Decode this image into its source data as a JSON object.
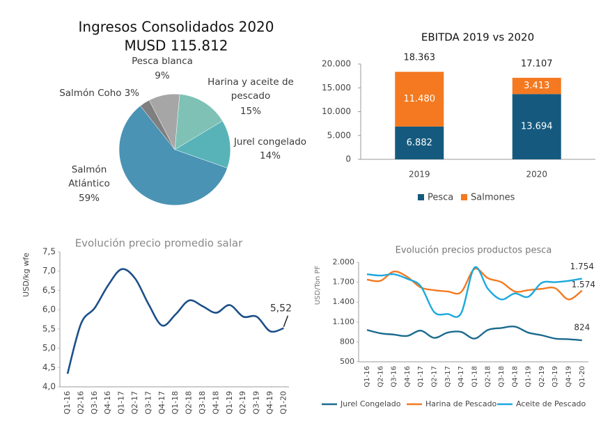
{
  "chart_data": [
    {
      "type": "pie",
      "title": "Ingresos Consolidados 2020",
      "subtitle": "MUSD 115.812",
      "categories": [
        "Harina y aceite de pescado",
        "Jurel congelado",
        "Salmón Atlántico",
        "Salmón Coho",
        "Pesca blanca"
      ],
      "values": [
        15,
        14,
        59,
        3,
        9
      ],
      "value_labels": [
        "15%",
        "14%",
        "59%",
        "3%",
        "9%"
      ],
      "colors": [
        "#7fc1b5",
        "#58b3b9",
        "#4a93b4",
        "#7f7f7f",
        "#a6a6a6"
      ]
    },
    {
      "type": "stacked_bar",
      "title": "EBITDA 2019 vs 2020",
      "categories": [
        "2019",
        "2020"
      ],
      "series": [
        {
          "name": "Pesca",
          "color": "#155a7e",
          "values": [
            6882,
            13694
          ],
          "value_labels": [
            "6.882",
            "13.694"
          ]
        },
        {
          "name": "Salmones",
          "color": "#f47920",
          "values": [
            11480,
            3413
          ],
          "value_labels": [
            "11.480",
            "3.413"
          ]
        }
      ],
      "totals": {
        "values": [
          18363,
          17107
        ],
        "value_labels": [
          "18.363",
          "17.107"
        ]
      },
      "ylim": [
        0,
        20000
      ],
      "yticks": [
        0,
        {
          "value": 5000,
          "label": "5.000"
        },
        {
          "value": 10000,
          "label": "10.000"
        },
        {
          "value": 15000,
          "label": "15.000"
        },
        {
          "value": 20000,
          "label": "20.000"
        }
      ],
      "legend": "bottom"
    },
    {
      "type": "line",
      "title": "Evolución precio promedio salar",
      "y_label": "USD/kg wfe",
      "categories": [
        "Q1-16",
        "Q2-16",
        "Q3-16",
        "Q4-16",
        "Q1-17",
        "Q2-17",
        "Q3-17",
        "Q4-17",
        "Q1-18",
        "Q2-18",
        "Q3-18",
        "Q4-18",
        "Q1-19",
        "Q2-19",
        "Q3-19",
        "Q4-19",
        "Q1-20"
      ],
      "series": [
        {
          "name": "Salar",
          "color": "#1c4f88",
          "values": [
            4.34,
            5.64,
            6.04,
            6.63,
            7.05,
            6.81,
            6.14,
            5.59,
            5.88,
            6.24,
            6.09,
            5.92,
            6.12,
            5.82,
            5.82,
            5.44,
            5.52
          ],
          "value_labels": [
            null,
            null,
            null,
            null,
            null,
            null,
            null,
            null,
            null,
            null,
            null,
            null,
            null,
            null,
            null,
            null,
            "5,52"
          ]
        }
      ],
      "ylim": [
        4,
        7.5
      ],
      "yticks": [
        {
          "value": 4,
          "label": "4,0"
        },
        {
          "value": 4.5,
          "label": "4,5"
        },
        {
          "value": 5,
          "label": "5,0"
        },
        {
          "value": 5.5,
          "label": "5,5"
        },
        {
          "value": 6,
          "label": "6,0"
        },
        {
          "value": 6.5,
          "label": "6,5"
        },
        {
          "value": 7,
          "label": "7,0"
        },
        {
          "value": 7.5,
          "label": "7,5"
        }
      ],
      "grid": false
    },
    {
      "type": "line",
      "title": "Evolución precios productos pesca",
      "y_label": "USD/Ton PF",
      "categories": [
        "Q1-16",
        "Q2-16",
        "Q3-16",
        "Q4-16",
        "Q1-17",
        "Q2-17",
        "Q3-17",
        "Q4-17",
        "Q1-18",
        "Q2-18",
        "Q3-18",
        "Q4-18",
        "Q1-19",
        "Q2-19",
        "Q3-19",
        "Q4-19",
        "Q1-20"
      ],
      "series": [
        {
          "name": "Jurel Congelado",
          "color": "#1a6a8e",
          "values": [
            980,
            930,
            910,
            890,
            970,
            860,
            940,
            950,
            850,
            980,
            1010,
            1030,
            940,
            900,
            850,
            840,
            824
          ],
          "value_labels": [
            null,
            null,
            null,
            null,
            null,
            null,
            null,
            null,
            null,
            null,
            null,
            null,
            null,
            null,
            null,
            null,
            "824"
          ]
        },
        {
          "name": "Harina de Pescado",
          "color": "#f47920",
          "values": [
            1740,
            1720,
            1860,
            1780,
            1620,
            1580,
            1560,
            1550,
            1900,
            1760,
            1700,
            1560,
            1580,
            1600,
            1610,
            1440,
            1574
          ],
          "value_labels": [
            null,
            null,
            null,
            null,
            null,
            null,
            null,
            null,
            null,
            null,
            null,
            null,
            null,
            null,
            null,
            null,
            "1.574"
          ]
        },
        {
          "name": "Aceite de Pescado",
          "color": "#1ca8dd",
          "values": [
            1820,
            1800,
            1820,
            1750,
            1640,
            1250,
            1220,
            1230,
            1920,
            1600,
            1440,
            1530,
            1480,
            1690,
            1700,
            1720,
            1754
          ],
          "value_labels": [
            null,
            null,
            null,
            null,
            null,
            null,
            null,
            null,
            null,
            null,
            null,
            null,
            null,
            null,
            null,
            null,
            "1.754"
          ]
        }
      ],
      "ylim": [
        500,
        2000
      ],
      "yticks": [
        500,
        800,
        {
          "value": 1100,
          "label": "1.100"
        },
        {
          "value": 1400,
          "label": "1.400"
        },
        {
          "value": 1700,
          "label": "1.700"
        },
        {
          "value": 2000,
          "label": "2.000"
        }
      ],
      "grid": false,
      "legend": "bottom"
    }
  ]
}
